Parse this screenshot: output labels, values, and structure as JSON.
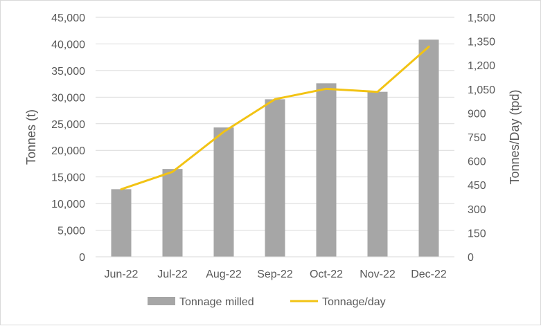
{
  "chart_data": {
    "type": "bar",
    "categories": [
      "Jun-22",
      "Jul-22",
      "Aug-22",
      "Sep-22",
      "Oct-22",
      "Nov-22",
      "Dec-22"
    ],
    "series": [
      {
        "name": "Tonnage milled",
        "type": "bar",
        "axis": "left",
        "color": "#a6a6a6",
        "values": [
          12700,
          16500,
          24300,
          29600,
          32600,
          31000,
          40800
        ]
      },
      {
        "name": "Tonnage/day",
        "type": "line",
        "axis": "right",
        "color": "#f2c314",
        "values": [
          423,
          532,
          783,
          987,
          1052,
          1033,
          1316
        ]
      }
    ],
    "ylabel": "Tonnes (t)",
    "y2label": "Tonnes/Day (tpd)",
    "ylim": [
      0,
      45000
    ],
    "y2lim": [
      0,
      1500
    ],
    "yticks": [
      "0",
      "5,000",
      "10,000",
      "15,000",
      "20,000",
      "25,000",
      "30,000",
      "35,000",
      "40,000",
      "45,000"
    ],
    "y2ticks": [
      "0",
      "150",
      "300",
      "450",
      "600",
      "750",
      "900",
      "1,050",
      "1,200",
      "1,350",
      "1,500"
    ],
    "grid": true,
    "legend": "bottom"
  }
}
